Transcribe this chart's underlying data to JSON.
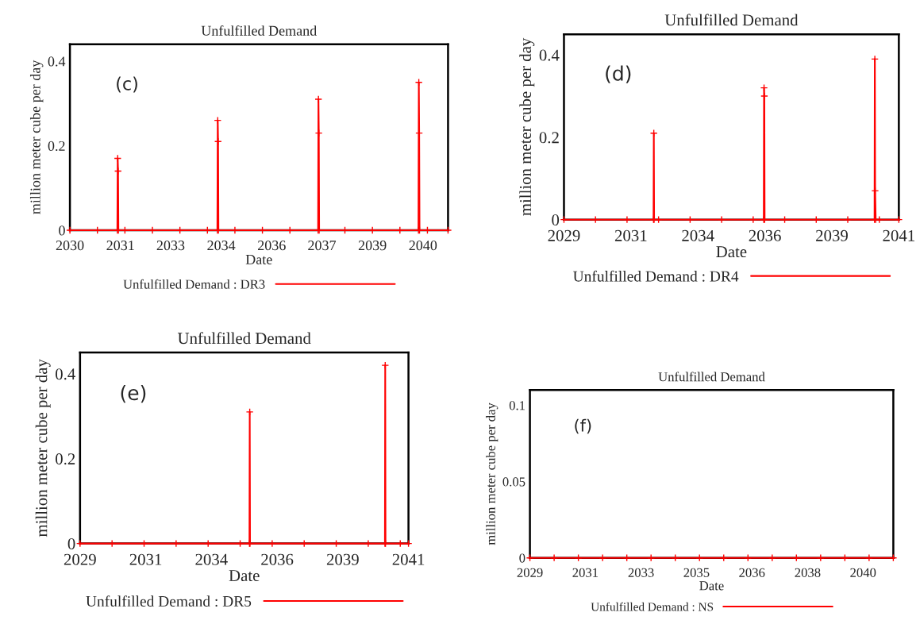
{
  "chart_data": [
    {
      "type": "line",
      "title": "Unfulfilled Demand",
      "xlabel": "Date",
      "ylabel": "million meter cube per day",
      "annotations": [
        "(c)"
      ],
      "legend": "bottom",
      "marker": "cross",
      "line_style": "solid",
      "grid": false,
      "xlim": [
        2030,
        2041
      ],
      "xticks": [
        2030,
        {
          "value": 2031.47,
          "label": "2031"
        },
        {
          "value": 2032.93,
          "label": "2033"
        },
        {
          "value": 2034.4,
          "label": "2034"
        },
        {
          "value": 2035.87,
          "label": "2036"
        },
        {
          "value": 2037.33,
          "label": "2037"
        },
        {
          "value": 2038.8,
          "label": "2039"
        },
        {
          "value": 2040.27,
          "label": "2040"
        }
      ],
      "ylim": [
        0,
        0.44
      ],
      "yticks": [
        0,
        0.2,
        0.4
      ],
      "series": [
        {
          "name": "Unfulfilled Demand : DR3",
          "color": "#ff0000",
          "x": [
            2030.0,
            2030.8,
            2031.38,
            2031.39,
            2031.4,
            2031.41,
            2031.6,
            2032.4,
            2033.2,
            2034.0,
            2034.29,
            2034.3,
            2034.31,
            2034.32,
            2034.8,
            2035.6,
            2036.4,
            2037.22,
            2037.23,
            2037.24,
            2037.25,
            2038.0,
            2038.8,
            2039.6,
            2040.14,
            2040.15,
            2040.16,
            2040.17,
            2040.4,
            2041.0
          ],
          "values": [
            0,
            0,
            0,
            0.17,
            0.14,
            0,
            0,
            0,
            0,
            0,
            0,
            0.26,
            0.21,
            0,
            0,
            0,
            0,
            0,
            0.31,
            0.23,
            0,
            0,
            0,
            0,
            0,
            0.35,
            0.23,
            0,
            0,
            0
          ]
        }
      ]
    },
    {
      "type": "line",
      "title": "Unfulfilled Demand",
      "xlabel": "Date",
      "ylabel": "million meter cube per day",
      "annotations": [
        "(d)"
      ],
      "legend": "bottom",
      "marker": "cross",
      "line_style": "solid",
      "grid": false,
      "xlim": [
        2029,
        2041
      ],
      "xticks": [
        2029,
        {
          "value": 2031.4,
          "label": "2031"
        },
        {
          "value": 2033.8,
          "label": "2034"
        },
        {
          "value": 2036.2,
          "label": "2036"
        },
        {
          "value": 2038.6,
          "label": "2039"
        },
        2041
      ],
      "ylim": [
        0,
        0.45
      ],
      "yticks": [
        0,
        0.2,
        0.4
      ],
      "series": [
        {
          "name": "Unfulfilled Demand : DR4",
          "color": "#ff0000",
          "x": [
            2029.0,
            2030.13,
            2031.26,
            2032.21,
            2032.22,
            2032.23,
            2032.39,
            2033.52,
            2034.65,
            2035.78,
            2036.16,
            2036.17,
            2036.18,
            2036.19,
            2036.91,
            2038.04,
            2039.17,
            2040.13,
            2040.14,
            2040.15,
            2040.17,
            2040.3,
            2041.0
          ],
          "values": [
            0,
            0,
            0,
            0,
            0.21,
            0,
            0,
            0,
            0,
            0,
            0,
            0.32,
            0.3,
            0,
            0,
            0,
            0,
            0,
            0.39,
            0.07,
            0,
            0,
            0
          ]
        }
      ]
    },
    {
      "type": "line",
      "title": "Unfulfilled Demand",
      "xlabel": "Date",
      "ylabel": "million meter cube per day",
      "annotations": [
        "(e)"
      ],
      "legend": "bottom",
      "marker": "cross",
      "line_style": "solid",
      "grid": false,
      "xlim": [
        2029,
        2041
      ],
      "xticks": [
        2029,
        {
          "value": 2031.4,
          "label": "2031"
        },
        {
          "value": 2033.8,
          "label": "2034"
        },
        {
          "value": 2036.2,
          "label": "2036"
        },
        {
          "value": 2038.6,
          "label": "2039"
        },
        2041
      ],
      "ylim": [
        0,
        0.45
      ],
      "yticks": [
        0,
        0.2,
        0.4
      ],
      "series": [
        {
          "name": "Unfulfilled Demand : DR5",
          "color": "#ff0000",
          "x": [
            2029.0,
            2030.17,
            2031.34,
            2032.51,
            2033.68,
            2034.85,
            2035.19,
            2035.2,
            2035.21,
            2036.02,
            2037.19,
            2038.36,
            2039.53,
            2040.14,
            2040.15,
            2040.16,
            2040.7,
            2041.0
          ],
          "values": [
            0,
            0,
            0,
            0,
            0,
            0,
            0,
            0.31,
            0,
            0,
            0,
            0,
            0,
            0,
            0.42,
            0,
            0,
            0
          ]
        }
      ]
    },
    {
      "type": "line",
      "title": "Unfulfilled Demand",
      "xlabel": "Date",
      "ylabel": "million meter cube per day",
      "annotations": [
        "(f)"
      ],
      "legend": "bottom",
      "marker": "cross",
      "line_style": "solid",
      "grid": false,
      "xlim": [
        2029,
        2041
      ],
      "xticks": [
        2029,
        {
          "value": 2030.83,
          "label": "2031"
        },
        {
          "value": 2032.67,
          "label": "2033"
        },
        {
          "value": 2034.5,
          "label": "2035"
        },
        {
          "value": 2036.33,
          "label": "2036"
        },
        {
          "value": 2038.17,
          "label": "2038"
        },
        2040
      ],
      "ylim": [
        0,
        0.11
      ],
      "yticks": [
        0,
        0.05,
        0.1
      ],
      "series": [
        {
          "name": "Unfulfilled Demand : NS",
          "color": "#ff0000",
          "x": [
            2029.0,
            2029.8,
            2030.6,
            2031.4,
            2032.2,
            2033.0,
            2033.8,
            2034.6,
            2035.4,
            2036.2,
            2037.0,
            2037.8,
            2038.6,
            2039.4,
            2040.2,
            2041.0
          ],
          "values": [
            0,
            0,
            0,
            0,
            0,
            0,
            0,
            0,
            0,
            0,
            0,
            0,
            0,
            0,
            0,
            0
          ]
        }
      ]
    }
  ]
}
